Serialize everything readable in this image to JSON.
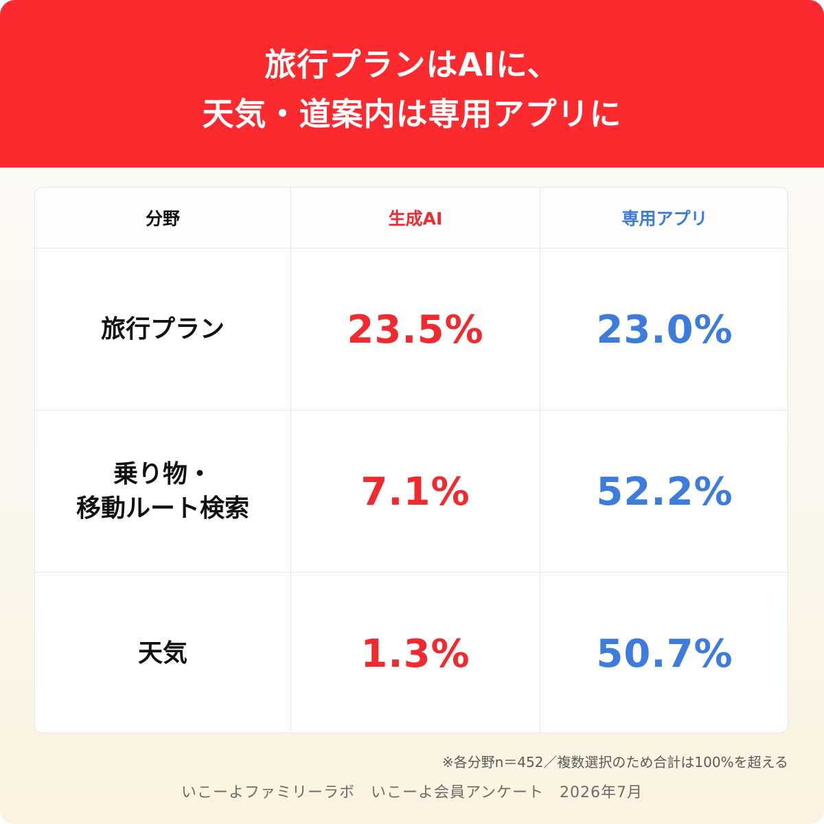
{
  "header": {
    "title_line1": "旅行プランはAIに、",
    "title_line2": "天気・道案内は専用アプリに",
    "color": "#fb2a2f"
  },
  "chart_data": {
    "type": "table",
    "columns": [
      "分野",
      "生成AI",
      "専用アプリ"
    ],
    "rows": [
      {
        "category_lines": [
          "旅行プラン"
        ],
        "ai": "23.5%",
        "app": "23.0%"
      },
      {
        "category_lines": [
          "乗り物・",
          "移動ルート検索"
        ],
        "ai": "7.1%",
        "app": "52.2%"
      },
      {
        "category_lines": [
          "天気"
        ],
        "ai": "1.3%",
        "app": "50.7%"
      }
    ],
    "series_colors": {
      "ai": "#f12a2f",
      "app": "#3d7bdd"
    }
  },
  "footer": {
    "note": "※各分野n＝452／複数選択のため合計は100%を超える",
    "source": "いこーよファミリーラボ　いこーよ会員アンケート　2026年7月"
  }
}
